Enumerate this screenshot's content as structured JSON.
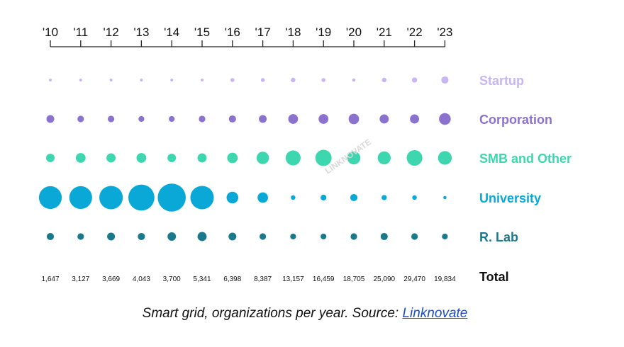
{
  "chart_data": {
    "type": "scatter",
    "x": [
      "'10",
      "'11",
      "'12",
      "'13",
      "'14",
      "'15",
      "'16",
      "'17",
      "'18",
      "'19",
      "'20",
      "'21",
      "'22",
      "'23"
    ],
    "series": [
      {
        "name": "Startup",
        "color": "#c7b6f2",
        "values": [
          0.3,
          0.3,
          0.3,
          0.3,
          0.3,
          0.4,
          0.6,
          0.6,
          0.7,
          0.6,
          0.5,
          0.7,
          0.8,
          1.1
        ]
      },
      {
        "name": "Corporation",
        "color": "#8b72cf",
        "values": [
          1.2,
          1.0,
          1.0,
          0.9,
          0.9,
          1.0,
          1.1,
          1.2,
          1.5,
          1.5,
          1.6,
          1.4,
          1.4,
          1.8
        ]
      },
      {
        "name": "SMB and Other",
        "color": "#3dd6ae",
        "values": [
          1.3,
          1.5,
          1.4,
          1.5,
          1.3,
          1.4,
          1.6,
          1.9,
          2.3,
          2.5,
          2.0,
          2.0,
          2.4,
          2.1
        ]
      },
      {
        "name": "University",
        "color": "#0aa8d6",
        "values": [
          3.5,
          3.5,
          3.6,
          4.0,
          4.3,
          3.6,
          1.8,
          1.6,
          0.7,
          0.9,
          1.1,
          0.8,
          0.7,
          0.5
        ]
      },
      {
        "name": "R. Lab",
        "color": "#1a7a8c",
        "values": [
          1.1,
          1.0,
          1.2,
          1.1,
          1.3,
          1.4,
          1.2,
          1.0,
          0.9,
          0.9,
          1.0,
          1.1,
          1.0,
          0.9
        ]
      }
    ],
    "totals_label": "Total",
    "totals": [
      "1,647",
      "3,127",
      "3,669",
      "4,043",
      "3,700",
      "5,341",
      "6,398",
      "8,387",
      "13,157",
      "16,459",
      "18,705",
      "25,090",
      "29,470",
      "19,834"
    ],
    "legend_placement": "right",
    "grid": false
  },
  "watermark": {
    "text": "LINKNOVATE"
  },
  "caption": {
    "text": "Smart grid, organizations per year. Source: ",
    "link_text": "Linknovate"
  }
}
